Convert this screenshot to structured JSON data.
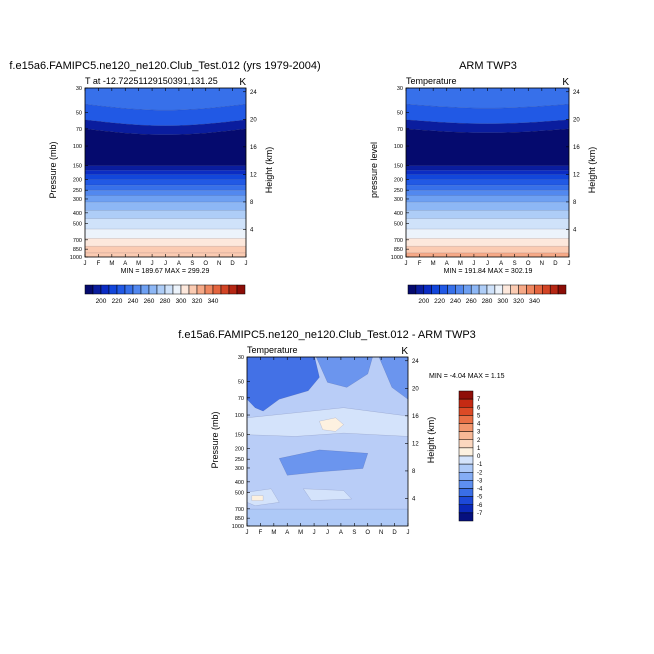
{
  "panels": [
    {
      "title": "f.e15a6.FAMIPC5.ne120_ne120.Club_Test.012 (yrs 1979-2004)",
      "left_label": "T at -12.7225112915039​1,131.25",
      "right_label": "K",
      "ylabel_left": "Pressure (mb)",
      "ylabel_right": "Height (km)",
      "minmax": "MIN = 189.67 MAX = 299.29",
      "colorbar_ticks": [
        "200",
        "220",
        "240",
        "260",
        "280",
        "300",
        "320",
        "340"
      ]
    },
    {
      "title": "ARM TWP3",
      "left_label": "Temperature",
      "right_label": "K",
      "ylabel_left": "pressure level",
      "ylabel_right": "Height (km)",
      "minmax": "MIN = 191.84 MAX = 302.19",
      "colorbar_ticks": [
        "200",
        "220",
        "240",
        "260",
        "280",
        "300",
        "320",
        "340"
      ]
    },
    {
      "title": "f.e15a6.FAMIPC5.ne120_ne120.Club_Test.012 - ARM TWP3",
      "left_label": "Temperature",
      "right_label": "K",
      "ylabel_left": "Pressure (mb)",
      "ylabel_right": "Height (km)",
      "minmax": "MIN = -4.04 MAX =  1.15",
      "colorbar_ticks": [
        "7",
        "6",
        "5",
        "4",
        "3",
        "2",
        "1",
        "0",
        "-1",
        "-2",
        "-3",
        "-4",
        "-5",
        "-6",
        "-7"
      ]
    }
  ],
  "chart_data": [
    {
      "type": "heatmap",
      "title": "f.e15a6.FAMIPC5.ne120_ne120.Club_Test.012 (yrs 1979-2004)",
      "xlabel": "",
      "ylabel": "Pressure (mb)",
      "x_ticks": [
        "J",
        "F",
        "M",
        "A",
        "M",
        "J",
        "J",
        "A",
        "S",
        "O",
        "N",
        "D",
        "J"
      ],
      "y_ticks": [
        30,
        50,
        70,
        100,
        150,
        200,
        250,
        300,
        400,
        500,
        700,
        850,
        1000
      ],
      "y_scale": "log",
      "right_axis_label": "Height (km)",
      "right_axis_ticks": [
        4,
        8,
        12,
        16,
        20,
        24
      ],
      "value_range": [
        189.67,
        299.29
      ],
      "units": "K"
    },
    {
      "type": "heatmap",
      "title": "ARM TWP3",
      "xlabel": "",
      "ylabel": "pressure level",
      "x_ticks": [
        "J",
        "F",
        "M",
        "A",
        "M",
        "J",
        "J",
        "A",
        "S",
        "O",
        "N",
        "D",
        "J"
      ],
      "y_ticks": [
        30,
        50,
        70,
        100,
        150,
        200,
        250,
        300,
        400,
        500,
        700,
        850,
        1000
      ],
      "y_scale": "log",
      "right_axis_label": "Height (km)",
      "right_axis_ticks": [
        4,
        8,
        12,
        16,
        20,
        24
      ],
      "value_range": [
        191.84,
        302.19
      ],
      "units": "K"
    },
    {
      "type": "heatmap",
      "title": "f.e15a6.FAMIPC5.ne120_ne120.Club_Test.012 - ARM TWP3",
      "xlabel": "",
      "ylabel": "Pressure (mb)",
      "x_ticks": [
        "J",
        "F",
        "M",
        "A",
        "M",
        "J",
        "J",
        "A",
        "S",
        "O",
        "N",
        "D",
        "J"
      ],
      "y_ticks": [
        30,
        50,
        70,
        100,
        150,
        200,
        250,
        300,
        400,
        500,
        700,
        850,
        1000
      ],
      "y_scale": "log",
      "right_axis_label": "Height (km)",
      "right_axis_ticks": [
        4,
        8,
        12,
        16,
        20,
        24
      ],
      "value_range": [
        -4.04,
        1.15
      ],
      "units": "K"
    }
  ],
  "colors": {
    "abs_scale": [
      "#050a6e",
      "#0a1d9e",
      "#0b2cc4",
      "#1246db",
      "#2159e5",
      "#3770ea",
      "#5288ef",
      "#6ea0f2",
      "#8db7f5",
      "#aecdf7",
      "#cfe2fa",
      "#ecf3fb",
      "#fde8dc",
      "#fbcbb2",
      "#f6a987",
      "#ef8760",
      "#e4653f",
      "#d24425",
      "#b62714",
      "#8c0d07"
    ],
    "diff_scale": [
      "#06107f",
      "#0b28b8",
      "#1d49d8",
      "#3a6ee6",
      "#5e8ff0",
      "#85adf5",
      "#aecaf8",
      "#d4e3fb",
      "#fdf1e0",
      "#fcd7bf",
      "#f8b896",
      "#f3966d",
      "#ea7046",
      "#dc4a26",
      "#c52a13",
      "#8f0e08"
    ],
    "diff_background": "#b9cdf7",
    "diff_mid": "#aec9f7",
    "diff_dark": "#6b95ee",
    "diff_darker": "#4371e6"
  }
}
